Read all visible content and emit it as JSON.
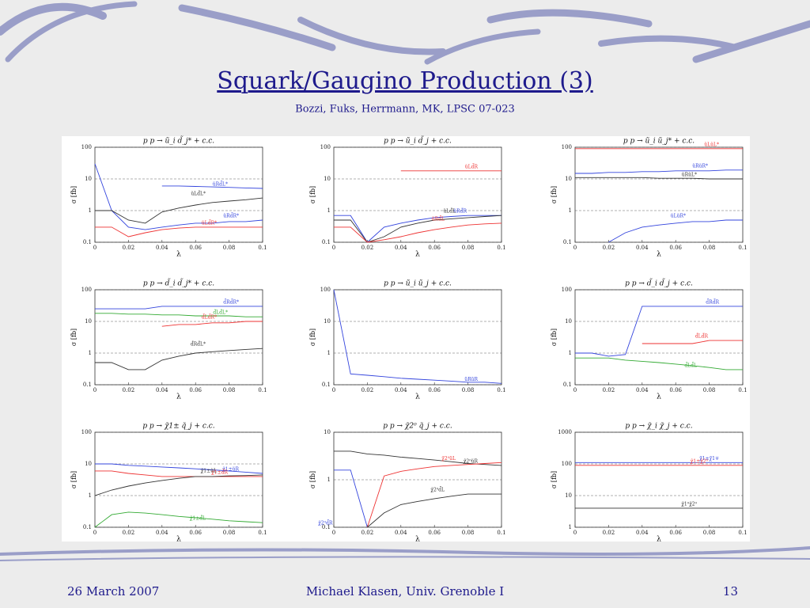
{
  "title": "Squark/Gaugino Production (3)",
  "subtitle": "Bozzi, Fuks, Herrmann, MK, LPSC 07-023",
  "footer": {
    "date": "26 March 2007",
    "author": "Michael Klasen, Univ. Grenoble I",
    "page": "13"
  },
  "chart_data": [
    {
      "type": "line",
      "title": "p p → ũ_i d̃_j* + c.c.",
      "xlabel": "λ",
      "ylabel": "σ [fb]",
      "log_y": true,
      "grid": true,
      "x": [
        0,
        0.01,
        0.02,
        0.03,
        0.04,
        0.05,
        0.06,
        0.07,
        0.08,
        0.09,
        0.1
      ],
      "xlim": [
        0,
        0.1
      ],
      "xticks": [
        0,
        0.02,
        0.04,
        0.06,
        0.08,
        0.1
      ],
      "ylim": [
        0.1,
        100
      ],
      "yticks": [
        0.1,
        1,
        10,
        100
      ],
      "series": [
        {
          "name": "ũRd̃R*",
          "color": "#3344dd",
          "values": [
            30,
            1,
            0.3,
            0.25,
            0.3,
            0.35,
            0.4,
            0.4,
            0.45,
            0.45,
            0.5
          ]
        },
        {
          "name": "ũRd̃L*",
          "color": "#3344dd",
          "values": [
            null,
            null,
            null,
            null,
            6,
            6,
            5.8,
            5.6,
            5.4,
            5.2,
            5
          ]
        },
        {
          "name": "ũLd̃R*",
          "color": "#ee3333",
          "values": [
            0.3,
            0.3,
            0.15,
            0.2,
            0.25,
            0.28,
            0.3,
            0.3,
            0.3,
            0.3,
            0.3
          ]
        },
        {
          "name": "ũLd̃L*",
          "color": "#333333",
          "values": [
            1,
            1,
            0.5,
            0.4,
            0.9,
            1.2,
            1.5,
            1.8,
            2,
            2.2,
            2.5
          ]
        }
      ]
    },
    {
      "type": "line",
      "title": "p p → ũ_i d̃_j + c.c.",
      "xlabel": "λ",
      "ylabel": "σ [fb]",
      "log_y": true,
      "grid": true,
      "x": [
        0,
        0.01,
        0.02,
        0.03,
        0.04,
        0.05,
        0.06,
        0.07,
        0.08,
        0.09,
        0.1
      ],
      "xlim": [
        0,
        0.1
      ],
      "xticks": [
        0,
        0.02,
        0.04,
        0.06,
        0.08,
        0.1
      ],
      "ylim": [
        0.1,
        100
      ],
      "yticks": [
        0.1,
        1,
        10,
        100
      ],
      "series": [
        {
          "name": "ũLd̃R",
          "color": "#ee3333",
          "values": [
            null,
            null,
            null,
            null,
            18,
            18,
            18,
            18,
            18,
            18,
            18
          ]
        },
        {
          "name": "ũRd̃R",
          "color": "#3344dd",
          "values": [
            0.7,
            0.7,
            0.1,
            0.3,
            0.4,
            0.5,
            0.6,
            0.65,
            0.7,
            0.7,
            0.7
          ]
        },
        {
          "name": "ũLd̃L",
          "color": "#333333",
          "values": [
            0.5,
            0.5,
            0.1,
            0.15,
            0.3,
            0.4,
            0.5,
            0.55,
            0.6,
            0.65,
            0.7
          ]
        },
        {
          "name": "ũRd̃L",
          "color": "#ee3333",
          "values": [
            0.3,
            0.3,
            0.1,
            0.12,
            0.15,
            0.2,
            0.25,
            0.3,
            0.35,
            0.38,
            0.4
          ]
        }
      ]
    },
    {
      "type": "line",
      "title": "p p → ũ_i ũ_j* + c.c.",
      "xlabel": "λ",
      "ylabel": "σ [fb]",
      "log_y": true,
      "grid": true,
      "x": [
        0,
        0.01,
        0.02,
        0.03,
        0.04,
        0.05,
        0.06,
        0.07,
        0.08,
        0.09,
        0.1
      ],
      "xlim": [
        0,
        0.1
      ],
      "xticks": [
        0,
        0.02,
        0.04,
        0.06,
        0.08,
        0.1
      ],
      "ylim": [
        0.1,
        100
      ],
      "yticks": [
        0.1,
        1,
        10,
        100
      ],
      "series": [
        {
          "name": "ũLũL*",
          "color": "#ee3333",
          "values": [
            90,
            90,
            90,
            90,
            90,
            90,
            90,
            90,
            90,
            90,
            90
          ]
        },
        {
          "name": "ũRũR*",
          "color": "#3344dd",
          "values": [
            15,
            15,
            16,
            16,
            17,
            17,
            18,
            18,
            18,
            19,
            19
          ]
        },
        {
          "name": "ũRũL*",
          "color": "#333333",
          "values": [
            11,
            11,
            11,
            11,
            11,
            10.5,
            10.5,
            10.5,
            10,
            10,
            10
          ]
        },
        {
          "name": "ũLũR*",
          "color": "#3344dd",
          "values": [
            null,
            null,
            0.1,
            0.2,
            0.3,
            0.35,
            0.4,
            0.45,
            0.45,
            0.5,
            0.5
          ]
        }
      ]
    },
    {
      "type": "line",
      "title": "p p → d̃_i d̃_j* + c.c.",
      "xlabel": "λ",
      "ylabel": "σ [fb]",
      "log_y": true,
      "grid": true,
      "x": [
        0,
        0.01,
        0.02,
        0.03,
        0.04,
        0.05,
        0.06,
        0.07,
        0.08,
        0.09,
        0.1
      ],
      "xlim": [
        0,
        0.1
      ],
      "xticks": [
        0,
        0.02,
        0.04,
        0.06,
        0.08,
        0.1
      ],
      "ylim": [
        0.1,
        100
      ],
      "yticks": [
        0.1,
        1,
        10,
        100
      ],
      "series": [
        {
          "name": "d̃Rd̃R*",
          "color": "#3344dd",
          "values": [
            25,
            25,
            25,
            25,
            30,
            30,
            30,
            30,
            30,
            30,
            30
          ]
        },
        {
          "name": "d̃Ld̃L*",
          "color": "#33aa33",
          "values": [
            18,
            18,
            17,
            17,
            16,
            16,
            15,
            15,
            15,
            14,
            14
          ]
        },
        {
          "name": "d̃Ld̃R*",
          "color": "#ee3333",
          "values": [
            null,
            null,
            null,
            null,
            7,
            8,
            8,
            9,
            9,
            10,
            10
          ]
        },
        {
          "name": "d̃Rd̃L*",
          "color": "#333333",
          "values": [
            0.5,
            0.5,
            0.3,
            0.3,
            0.6,
            0.8,
            1,
            1.1,
            1.2,
            1.3,
            1.4
          ]
        }
      ]
    },
    {
      "type": "line",
      "title": "p p → ũ_i ũ_j + c.c.",
      "xlabel": "λ",
      "ylabel": "σ [fb]",
      "log_y": true,
      "grid": true,
      "x": [
        0,
        0.01,
        0.02,
        0.03,
        0.04,
        0.05,
        0.06,
        0.07,
        0.08,
        0.09,
        0.1
      ],
      "xlim": [
        0,
        0.1
      ],
      "xticks": [
        0,
        0.02,
        0.04,
        0.06,
        0.08,
        0.1
      ],
      "ylim": [
        0.1,
        100
      ],
      "yticks": [
        0.1,
        1,
        10,
        100
      ],
      "series": [
        {
          "name": "ũRũR",
          "color": "#3344dd",
          "values": [
            100,
            0.22,
            0.2,
            0.18,
            0.16,
            0.15,
            0.14,
            0.13,
            0.12,
            0.12,
            0.11
          ]
        }
      ]
    },
    {
      "type": "line",
      "title": "p p → d̃_i d̃_j + c.c.",
      "xlabel": "λ",
      "ylabel": "σ [fb]",
      "log_y": true,
      "grid": true,
      "x": [
        0,
        0.01,
        0.02,
        0.03,
        0.04,
        0.05,
        0.06,
        0.07,
        0.08,
        0.09,
        0.1
      ],
      "xlim": [
        0,
        0.1
      ],
      "xticks": [
        0,
        0.02,
        0.04,
        0.06,
        0.08,
        0.1
      ],
      "ylim": [
        0.1,
        100
      ],
      "yticks": [
        0.1,
        1,
        10,
        100
      ],
      "series": [
        {
          "name": "d̃Rd̃R",
          "color": "#3344dd",
          "values": [
            1,
            1,
            0.8,
            0.9,
            30,
            30,
            30,
            30,
            30,
            30,
            30
          ]
        },
        {
          "name": "d̃Ld̃R",
          "color": "#ee3333",
          "values": [
            null,
            null,
            null,
            null,
            2,
            2,
            2,
            2,
            2.5,
            2.5,
            2.5
          ]
        },
        {
          "name": "d̃Ld̃L",
          "color": "#33aa33",
          "values": [
            0.7,
            0.7,
            0.7,
            0.6,
            0.55,
            0.5,
            0.45,
            0.4,
            0.35,
            0.3,
            0.3
          ]
        }
      ]
    },
    {
      "type": "line",
      "title": "p p → χ̃1± q̃_j + c.c.",
      "xlabel": "λ",
      "ylabel": "σ [fb]",
      "log_y": true,
      "grid": true,
      "x": [
        0,
        0.01,
        0.02,
        0.03,
        0.04,
        0.05,
        0.06,
        0.07,
        0.08,
        0.09,
        0.1
      ],
      "xlim": [
        0,
        0.1
      ],
      "xticks": [
        0,
        0.02,
        0.04,
        0.06,
        0.08,
        0.1
      ],
      "ylim": [
        0.1,
        100
      ],
      "yticks": [
        0.1,
        1,
        10,
        100
      ],
      "series": [
        {
          "name": "χ̃1±ũR",
          "color": "#3344dd",
          "values": [
            10,
            10,
            9,
            8.5,
            8,
            7.5,
            7,
            6.5,
            6,
            5.5,
            5
          ]
        },
        {
          "name": "χ̃1±d̃R",
          "color": "#ee3333",
          "values": [
            6,
            6,
            5,
            4.5,
            4,
            4,
            4,
            4,
            4,
            4,
            4
          ]
        },
        {
          "name": "χ̃1±ũL",
          "color": "#333333",
          "values": [
            1,
            1.5,
            2,
            2.5,
            3,
            3.5,
            4,
            4,
            4.2,
            4.3,
            4.5
          ]
        },
        {
          "name": "χ̃1±d̃L",
          "color": "#33aa33",
          "values": [
            0.1,
            0.25,
            0.3,
            0.28,
            0.25,
            0.22,
            0.2,
            0.18,
            0.16,
            0.15,
            0.14
          ]
        }
      ]
    },
    {
      "type": "line",
      "title": "p p → χ̃2⁰ q̃_j + c.c.",
      "xlabel": "λ",
      "ylabel": "σ [fb]",
      "log_y": true,
      "grid": true,
      "x": [
        0,
        0.01,
        0.02,
        0.03,
        0.04,
        0.05,
        0.06,
        0.07,
        0.08,
        0.09,
        0.1
      ],
      "xlim": [
        0,
        0.1
      ],
      "xticks": [
        0,
        0.02,
        0.04,
        0.06,
        0.08,
        0.1
      ],
      "ylim": [
        0.1,
        10
      ],
      "yticks": [
        0.1,
        1,
        10
      ],
      "series": [
        {
          "name": "χ̃2⁰ũR",
          "color": "#333333",
          "values": [
            4,
            4,
            3.5,
            3.3,
            3,
            2.8,
            2.6,
            2.4,
            2.2,
            2.1,
            2
          ]
        },
        {
          "name": "χ̃2⁰d̃R",
          "color": "#3344dd",
          "values": [
            1.6,
            1.6,
            0.1,
            null,
            null,
            null,
            null,
            null,
            null,
            null,
            null
          ]
        },
        {
          "name": "χ̃2⁰ũL",
          "color": "#ee3333",
          "values": [
            null,
            null,
            0.1,
            1.2,
            1.5,
            1.7,
            1.9,
            2,
            2.1,
            2.2,
            2.3
          ]
        },
        {
          "name": "χ̃2⁰d̃L",
          "color": "#333333",
          "values": [
            null,
            null,
            0.1,
            0.2,
            0.3,
            0.35,
            0.4,
            0.45,
            0.5,
            0.5,
            0.5
          ]
        }
      ]
    },
    {
      "type": "line",
      "title": "p p → χ̃_i χ̃_j + c.c.",
      "xlabel": "λ",
      "ylabel": "σ [fb]",
      "log_y": true,
      "grid": true,
      "x": [
        0,
        0.01,
        0.02,
        0.03,
        0.04,
        0.05,
        0.06,
        0.07,
        0.08,
        0.09,
        0.1
      ],
      "xlim": [
        0,
        0.1
      ],
      "xticks": [
        0,
        0.02,
        0.04,
        0.06,
        0.08,
        0.1
      ],
      "ylim": [
        1,
        1000
      ],
      "yticks": [
        1,
        10,
        100,
        1000
      ],
      "series": [
        {
          "name": "χ̃1±χ̃1∓",
          "color": "#3344dd",
          "values": [
            110,
            110,
            110,
            110,
            110,
            110,
            110,
            110,
            110,
            110,
            110
          ]
        },
        {
          "name": "χ̃1±χ̃2⁰",
          "color": "#ee3333",
          "values": [
            90,
            90,
            90,
            90,
            90,
            90,
            90,
            90,
            90,
            90,
            90
          ]
        },
        {
          "name": "χ̃1⁰χ̃2⁰",
          "color": "#333333",
          "values": [
            4,
            4,
            4,
            4,
            4,
            4,
            4,
            4,
            4,
            4,
            4
          ]
        }
      ]
    }
  ]
}
